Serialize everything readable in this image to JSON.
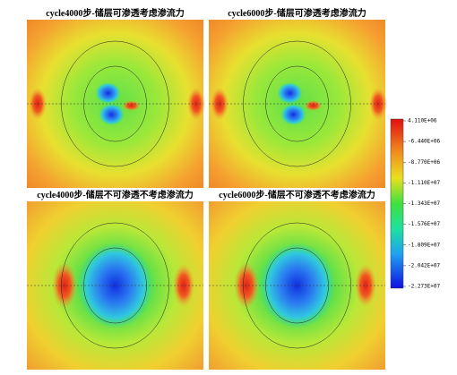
{
  "panels": [
    {
      "title": "cycle4000步-储层可渗透考虑渗流力"
    },
    {
      "title": "cycle6000步-储层可渗透考虑渗流力"
    },
    {
      "title": "cycle4000步-储层不可渗透不考虑渗流力"
    },
    {
      "title": "cycle6000步-储层不可渗透不考虑渗流力"
    }
  ],
  "colorbar": {
    "labels": [
      "4.110E+06",
      "-6.440E+06",
      "-8.770E+06",
      "-1.110E+07",
      "-1.343E+07",
      "-1.576E+07",
      "-1.809E+07",
      "-2.042E+07",
      "-2.273E+07"
    ]
  }
}
